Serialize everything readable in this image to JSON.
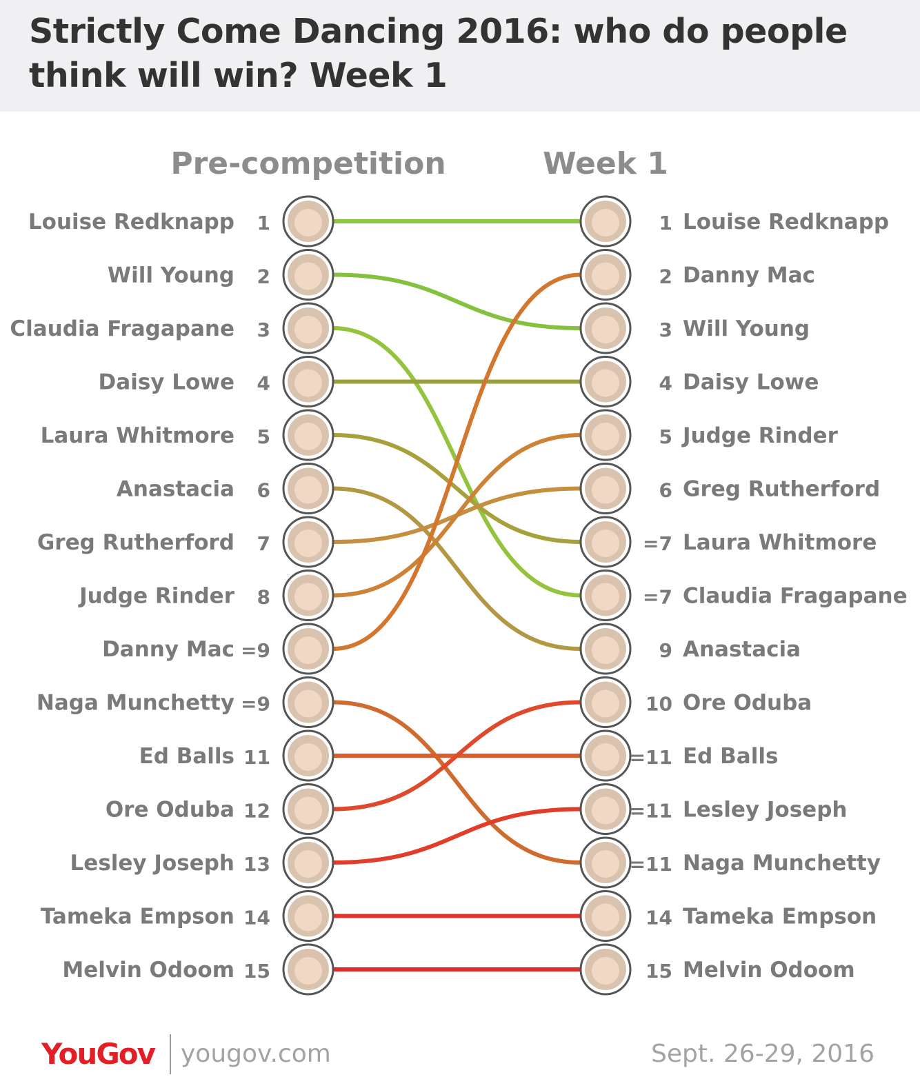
{
  "title": "Strictly Come Dancing 2016: who do people think will win? Week 1",
  "chart_data": {
    "type": "slope",
    "left_label": "Pre-competition",
    "right_label": "Week 1",
    "left": [
      {
        "name": "Louise Redknapp",
        "rank": "1"
      },
      {
        "name": "Will Young",
        "rank": "2"
      },
      {
        "name": "Claudia Fragapane",
        "rank": "3"
      },
      {
        "name": "Daisy Lowe",
        "rank": "4"
      },
      {
        "name": "Laura Whitmore",
        "rank": "5"
      },
      {
        "name": "Anastacia",
        "rank": "6"
      },
      {
        "name": "Greg Rutherford",
        "rank": "7"
      },
      {
        "name": "Judge Rinder",
        "rank": "8"
      },
      {
        "name": "Danny Mac",
        "rank": "=9"
      },
      {
        "name": "Naga Munchetty",
        "rank": "=9"
      },
      {
        "name": "Ed Balls",
        "rank": "11"
      },
      {
        "name": "Ore Oduba",
        "rank": "12"
      },
      {
        "name": "Lesley Joseph",
        "rank": "13"
      },
      {
        "name": "Tameka Empson",
        "rank": "14"
      },
      {
        "name": "Melvin Odoom",
        "rank": "15"
      }
    ],
    "right": [
      {
        "name": "Louise Redknapp",
        "rank": "1"
      },
      {
        "name": "Danny Mac",
        "rank": "2"
      },
      {
        "name": "Will Young",
        "rank": "3"
      },
      {
        "name": "Daisy Lowe",
        "rank": "4"
      },
      {
        "name": "Judge Rinder",
        "rank": "5"
      },
      {
        "name": "Greg Rutherford",
        "rank": "6"
      },
      {
        "name": "Laura Whitmore",
        "rank": "=7"
      },
      {
        "name": "Claudia Fragapane",
        "rank": "=7"
      },
      {
        "name": "Anastacia",
        "rank": "9"
      },
      {
        "name": "Ore Oduba",
        "rank": "10"
      },
      {
        "name": "Ed Balls",
        "rank": "=11"
      },
      {
        "name": "Lesley Joseph",
        "rank": "=11"
      },
      {
        "name": "Naga Munchetty",
        "rank": "=11"
      },
      {
        "name": "Tameka Empson",
        "rank": "14"
      },
      {
        "name": "Melvin Odoom",
        "rank": "15"
      }
    ],
    "line_colors": {
      "Louise Redknapp": "#8dc63f",
      "Will Young": "#85c141",
      "Claudia Fragapane": "#94c43d",
      "Daisy Lowe": "#9aa13b",
      "Laura Whitmore": "#a7a13c",
      "Anastacia": "#b39843",
      "Greg Rutherford": "#c49040",
      "Judge Rinder": "#cc8338",
      "Danny Mac": "#d4772e",
      "Naga Munchetty": "#d06b30",
      "Ed Balls": "#dc5c2e",
      "Ore Oduba": "#e04a2c",
      "Lesley Joseph": "#e23d2b",
      "Tameka Empson": "#e2332a",
      "Melvin Odoom": "#e02a27"
    }
  },
  "footer": {
    "logo_you": "You",
    "logo_gov": "Gov",
    "url": "yougov.com",
    "date": "Sept. 26-29, 2016"
  }
}
